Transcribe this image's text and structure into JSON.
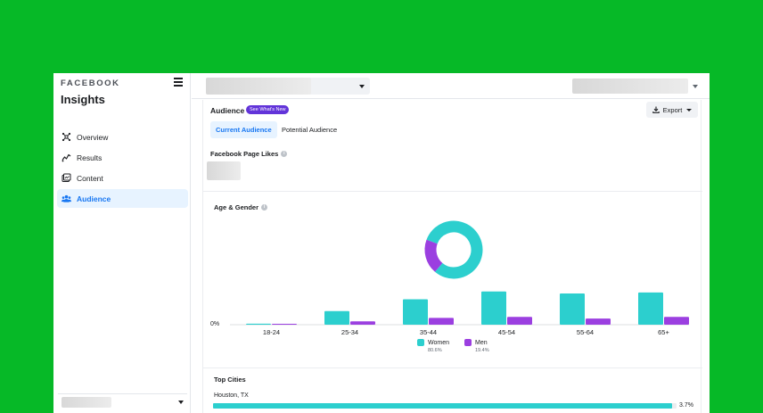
{
  "sidebar": {
    "brand": "FACEBOOK",
    "title": "Insights",
    "items": [
      {
        "label": "Overview",
        "icon": "overview-icon",
        "active": false
      },
      {
        "label": "Results",
        "icon": "results-icon",
        "active": false
      },
      {
        "label": "Content",
        "icon": "content-icon",
        "active": false
      },
      {
        "label": "Audience",
        "icon": "audience-icon",
        "active": true
      }
    ]
  },
  "audience": {
    "title": "Audience",
    "badge": "See What's New",
    "export_label": "Export",
    "tabs": [
      {
        "label": "Current Audience",
        "active": true
      },
      {
        "label": "Potential Audience",
        "active": false
      }
    ],
    "page_likes_label": "Facebook Page Likes",
    "age_gender_label": "Age & Gender",
    "top_cities_label": "Top Cities"
  },
  "colors": {
    "women": "#2ccfce",
    "men": "#9b3fe0",
    "accent": "#1877f2",
    "badge": "#6234d9",
    "background": "#06b927"
  },
  "chart_data": {
    "type": "bar",
    "title": "Age & Gender",
    "categories": [
      "18-24",
      "25-34",
      "35-44",
      "45-54",
      "55-64",
      "65+"
    ],
    "series": [
      {
        "name": "Women",
        "values": [
          0.3,
          4.0,
          7.5,
          9.8,
          9.2,
          9.5
        ]
      },
      {
        "name": "Men",
        "values": [
          0.1,
          1.0,
          2.0,
          2.3,
          1.8,
          2.3
        ]
      }
    ],
    "y_tick_label": "0%",
    "ylim": [
      0,
      10
    ],
    "donut": {
      "type": "pie",
      "labels": [
        "Women",
        "Men"
      ],
      "values": [
        80.6,
        19.4
      ],
      "percent_labels": [
        "80.6%",
        "19.4%"
      ]
    },
    "legend": "bottom"
  },
  "top_cities": [
    {
      "name": "Houston, TX",
      "value": 3.7,
      "label": "3.7%"
    }
  ]
}
